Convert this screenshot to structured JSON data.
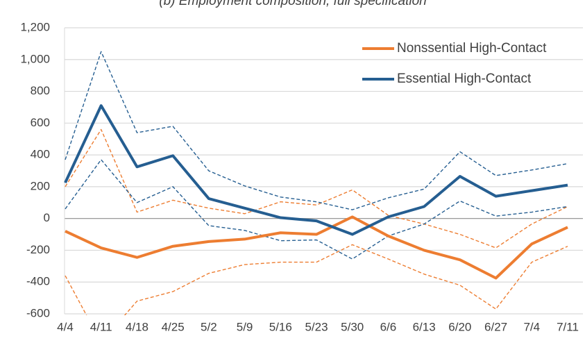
{
  "chart_data": {
    "type": "line",
    "title": "(b) Employment composition, full specification",
    "categories": [
      "4/4",
      "4/11",
      "4/18",
      "4/25",
      "5/2",
      "5/9",
      "5/16",
      "5/23",
      "5/30",
      "6/6",
      "6/13",
      "6/20",
      "6/27",
      "7/4",
      "7/11"
    ],
    "series": [
      {
        "color": "#ed7d31",
        "style": "dashed",
        "values": [
          200,
          560,
          40,
          115,
          65,
          30,
          105,
          85,
          180,
          20,
          -35,
          -100,
          -185,
          -35,
          75
        ]
      },
      {
        "color": "#ed7d31",
        "style": "dashed",
        "values": [
          -360,
          -780,
          -520,
          -460,
          -345,
          -290,
          -275,
          -275,
          -165,
          -255,
          -350,
          -420,
          -570,
          -275,
          -175
        ]
      },
      {
        "color": "#255e91",
        "style": "dashed",
        "values": [
          370,
          1050,
          540,
          580,
          300,
          205,
          135,
          105,
          55,
          130,
          185,
          420,
          270,
          305,
          345
        ]
      },
      {
        "color": "#255e91",
        "style": "dashed",
        "values": [
          60,
          370,
          100,
          200,
          -45,
          -75,
          -140,
          -135,
          -255,
          -110,
          -35,
          110,
          15,
          40,
          75
        ]
      },
      {
        "name": "Nonssential High-Contact",
        "color": "#ed7d31",
        "style": "solid",
        "values": [
          -80,
          -185,
          -245,
          -175,
          -145,
          -130,
          -90,
          -100,
          10,
          -110,
          -200,
          -260,
          -375,
          -160,
          -55
        ]
      },
      {
        "name": "Essential High-Contact",
        "color": "#255e91",
        "style": "solid",
        "values": [
          225,
          710,
          325,
          395,
          125,
          65,
          5,
          -15,
          -100,
          10,
          75,
          265,
          140,
          175,
          210
        ]
      }
    ],
    "ylim": [
      -600,
      1200
    ],
    "yticks": [
      -600,
      -400,
      -200,
      0,
      200,
      400,
      600,
      800,
      {
        "value": 1000,
        "label": "1,000"
      },
      {
        "value": 1200,
        "label": "1,200"
      }
    ],
    "grid": true,
    "legend": "upper right"
  }
}
